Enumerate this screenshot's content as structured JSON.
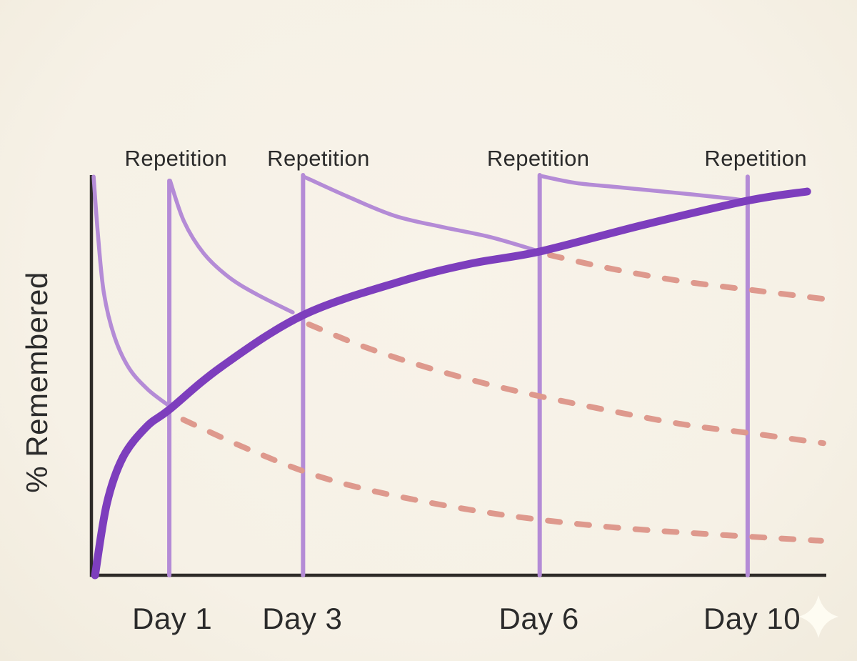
{
  "page": {
    "background": "#f7f2e8"
  },
  "chart_data": {
    "type": "line",
    "title": "",
    "xlabel": "",
    "ylabel": "% Remembered",
    "grid": false,
    "legend": null,
    "axis": {
      "color": "#2e2b28",
      "x_range": [
        0,
        100
      ],
      "y_range": [
        0,
        100
      ]
    },
    "colors": {
      "retention": "#7d3ebd",
      "forgetting": "#b48bd6",
      "projected": "#de998d",
      "text": "#2b2b2b",
      "background": "#f7f2e8",
      "sparkle": "#fffdf4"
    },
    "repetition_label": "Repetition",
    "repetitions": [
      {
        "line_pos": 10.6,
        "line_top": 98.6,
        "label_pos": 11.5
      },
      {
        "line_pos": 28.8,
        "line_top": 100,
        "label_pos": 30.9
      },
      {
        "line_pos": 61.0,
        "line_top": 100,
        "label_pos": 60.8
      },
      {
        "line_pos": 89.3,
        "line_top": 99.6,
        "label_pos": 90.4
      }
    ],
    "x_ticks": [
      {
        "label": "Day 1",
        "pos": 11.0
      },
      {
        "label": "Day 3",
        "pos": 28.7
      },
      {
        "label": "Day 6",
        "pos": 60.9
      },
      {
        "label": "Day 10",
        "pos": 89.9
      }
    ],
    "series": [
      {
        "name": "retention-with-spaced-repetition",
        "style": "solid-thick",
        "color_key": "retention",
        "points": [
          [
            0.5,
            0
          ],
          [
            2.1,
            17.9
          ],
          [
            4.3,
            29.5
          ],
          [
            7.5,
            37.1
          ],
          [
            10.6,
            41.4
          ],
          [
            17.7,
            52.1
          ],
          [
            28.8,
            65.0
          ],
          [
            42.0,
            73.4
          ],
          [
            51.7,
            77.9
          ],
          [
            61.0,
            80.9
          ],
          [
            75.0,
            87.5
          ],
          [
            89.3,
            93.6
          ],
          [
            97.4,
            95.9
          ]
        ]
      },
      {
        "name": "forgetting-curve-initial",
        "style": "solid-thin",
        "color_key": "forgetting",
        "points": [
          [
            0.3,
            99.6
          ],
          [
            0.9,
            84.8
          ],
          [
            1.7,
            70.5
          ],
          [
            3.1,
            59.8
          ],
          [
            5.1,
            51.8
          ],
          [
            7.7,
            46.4
          ],
          [
            10.6,
            42.3
          ]
        ]
      },
      {
        "name": "forgetting-curve-after-repetition-1",
        "style": "solid-thin",
        "color_key": "forgetting",
        "points": [
          [
            10.7,
            98.6
          ],
          [
            12.6,
            88.4
          ],
          [
            15.3,
            80.4
          ],
          [
            18.7,
            74.5
          ],
          [
            22.5,
            70.2
          ],
          [
            27.4,
            65.7
          ]
        ]
      },
      {
        "name": "forgetting-curve-after-repetition-2",
        "style": "solid-thin",
        "color_key": "forgetting",
        "points": [
          [
            28.9,
            99.6
          ],
          [
            34.9,
            94.6
          ],
          [
            41.3,
            89.8
          ],
          [
            47.8,
            87.0
          ],
          [
            54.3,
            84.5
          ],
          [
            61.0,
            80.9
          ]
        ]
      },
      {
        "name": "forgetting-curve-after-repetition-3",
        "style": "solid-thin",
        "color_key": "forgetting",
        "points": [
          [
            61.1,
            99.8
          ],
          [
            66.0,
            98.0
          ],
          [
            72.1,
            96.9
          ],
          [
            79.9,
            95.5
          ],
          [
            86.7,
            94.2
          ],
          [
            89.1,
            93.6
          ]
        ]
      },
      {
        "name": "projected-forgetting-from-repetition-1",
        "style": "dashed",
        "color_key": "projected",
        "points": [
          [
            12.5,
            38.9
          ],
          [
            21.6,
            31.3
          ],
          [
            31.3,
            24.5
          ],
          [
            42.0,
            19.6
          ],
          [
            55.6,
            15.2
          ],
          [
            70.2,
            12.1
          ],
          [
            84.7,
            10.2
          ],
          [
            99.3,
            8.6
          ]
        ]
      },
      {
        "name": "projected-forgetting-from-repetition-2",
        "style": "dashed",
        "color_key": "projected",
        "points": [
          [
            29.6,
            62.7
          ],
          [
            37.1,
            57.1
          ],
          [
            45.9,
            51.8
          ],
          [
            55.6,
            47.0
          ],
          [
            66.3,
            42.7
          ],
          [
            79.9,
            37.9
          ],
          [
            90.1,
            35.4
          ],
          [
            99.6,
            33.0
          ]
        ]
      },
      {
        "name": "projected-forgetting-from-repetition-3",
        "style": "dashed",
        "color_key": "projected",
        "points": [
          [
            62.4,
            80.0
          ],
          [
            70.2,
            76.8
          ],
          [
            79.9,
            73.6
          ],
          [
            90.6,
            71.1
          ],
          [
            100.8,
            68.8
          ]
        ]
      }
    ]
  },
  "watermark": {
    "icon": "sparkle",
    "color": "#fffdf4"
  }
}
